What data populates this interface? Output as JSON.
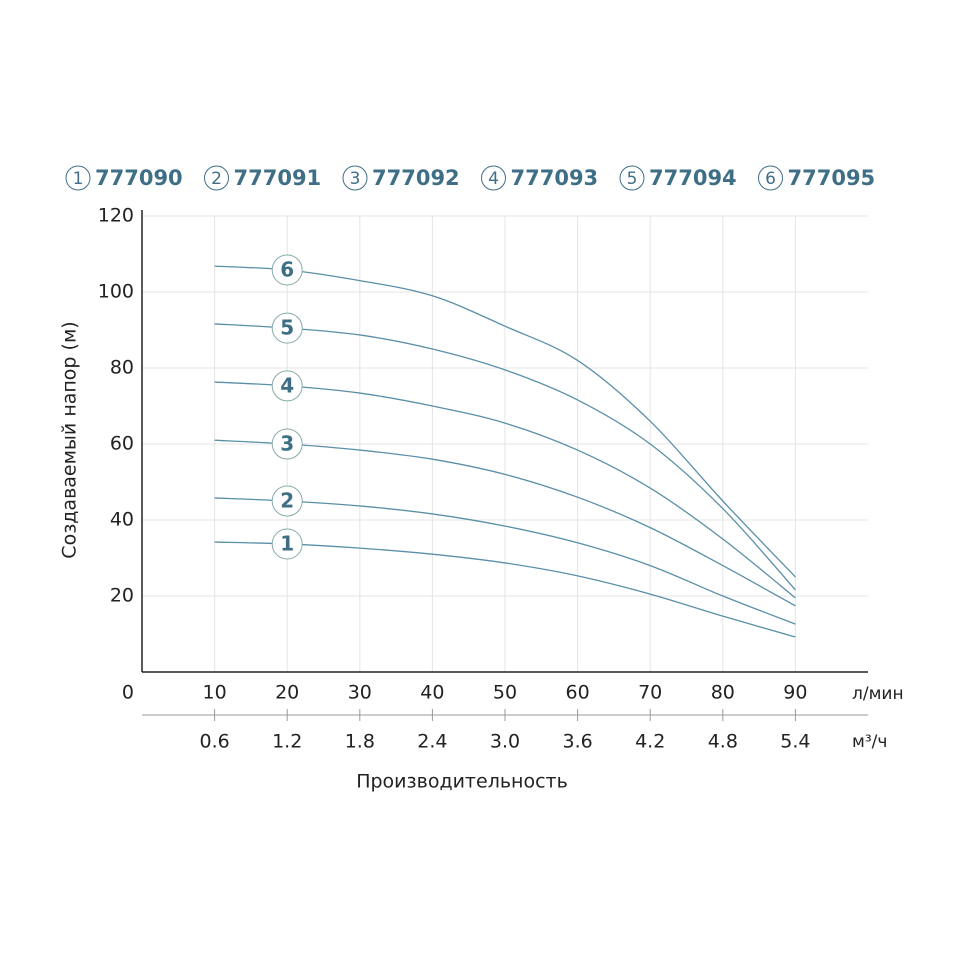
{
  "chart_data": {
    "type": "line",
    "y_label": "Создаваемый напор (м)",
    "x_label": "Производительность",
    "x_unit": "л/мин",
    "x2_unit": "м³/ч",
    "x": [
      10,
      20,
      30,
      40,
      50,
      60,
      70,
      80,
      90
    ],
    "xlim": [
      0,
      100
    ],
    "xticks": [
      0,
      10,
      20,
      30,
      40,
      50,
      60,
      70,
      80,
      90
    ],
    "x2lim": [
      0,
      6
    ],
    "x2ticks": [
      0.6,
      1.2,
      1.8,
      2.4,
      {
        "value": 3,
        "label": "3.0"
      },
      3.6,
      4.2,
      4.8,
      5.4
    ],
    "ylim": [
      0,
      120
    ],
    "yticks": [
      20,
      40,
      60,
      80,
      100,
      120
    ],
    "grid": true,
    "series": [
      {
        "name": "777090",
        "label": "1",
        "color": "#5a8fa8",
        "values": [
          34.2,
          33.7,
          32.6,
          31,
          28.7,
          25.3,
          20.5,
          14.7,
          9.2
        ]
      },
      {
        "name": "777091",
        "label": "2",
        "color": "#5a8fa8",
        "values": [
          45.8,
          45,
          43.7,
          41.6,
          38.4,
          34,
          28,
          20,
          12.6
        ]
      },
      {
        "name": "777092",
        "label": "3",
        "color": "#5a8fa8",
        "values": [
          61,
          60,
          58.4,
          56,
          52,
          46,
          38,
          28,
          17.4
        ]
      },
      {
        "name": "777093",
        "label": "4",
        "color": "#5a8fa8",
        "values": [
          76.3,
          75.3,
          73.4,
          70,
          65.5,
          58.4,
          48.4,
          35,
          19.5
        ]
      },
      {
        "name": "777094",
        "label": "5",
        "color": "#5a8fa8",
        "values": [
          91.6,
          90.5,
          88.7,
          85,
          79.5,
          71.6,
          60,
          43,
          21.6
        ]
      },
      {
        "name": "777095",
        "label": "6",
        "color": "#5a8fa8",
        "values": [
          106.8,
          105.8,
          103,
          99,
          91,
          82,
          66,
          45,
          25
        ]
      }
    ]
  }
}
